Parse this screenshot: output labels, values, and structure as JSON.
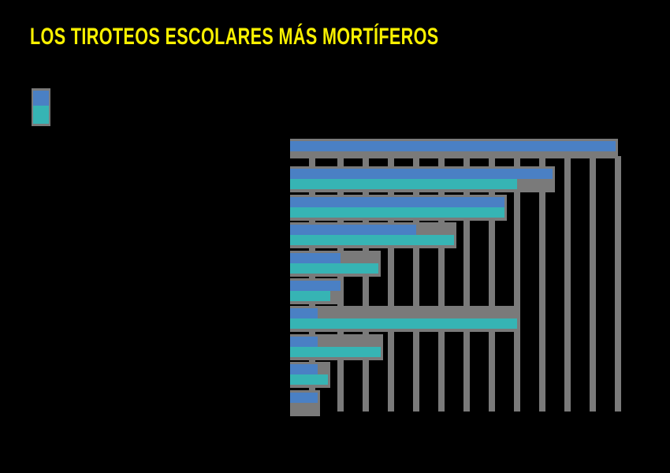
{
  "title": "LOS TIROTEOS ESCOLARES MÁS MORTÍFEROS",
  "colors": {
    "background": "#000000",
    "title": "#f8f000",
    "series_0": "#4a80c4",
    "series_1": "#36b4b4",
    "grid": "#7a7a7a"
  },
  "legend": {
    "entries": [
      {
        "name": "",
        "color": "#4a80c4"
      },
      {
        "name": "",
        "color": "#36b4b4"
      }
    ]
  },
  "chart_data": {
    "type": "bar",
    "orientation": "horizontal",
    "title": "LOS TIROTEOS ESCOLARES MÁS MORTÍFEROS",
    "xlabel": "",
    "ylabel": "",
    "categories": [
      "",
      "",
      "",
      "",
      "",
      "",
      "",
      "",
      "",
      ""
    ],
    "series": [
      {
        "name": "",
        "color": "#4a80c4",
        "values": [
          12.9,
          10.4,
          8.5,
          5.0,
          2.0,
          2.0,
          1.1,
          1.1,
          1.1,
          1.1
        ]
      },
      {
        "name": "",
        "color": "#36b4b4",
        "values": [
          0,
          9.0,
          8.5,
          6.5,
          3.5,
          1.6,
          9.0,
          3.6,
          1.5,
          0
        ]
      }
    ],
    "xlim": [
      0,
      13
    ],
    "units_note": "values in gridline units (axis tick labels not shown)",
    "grid": true,
    "legend_position": "top-left"
  }
}
